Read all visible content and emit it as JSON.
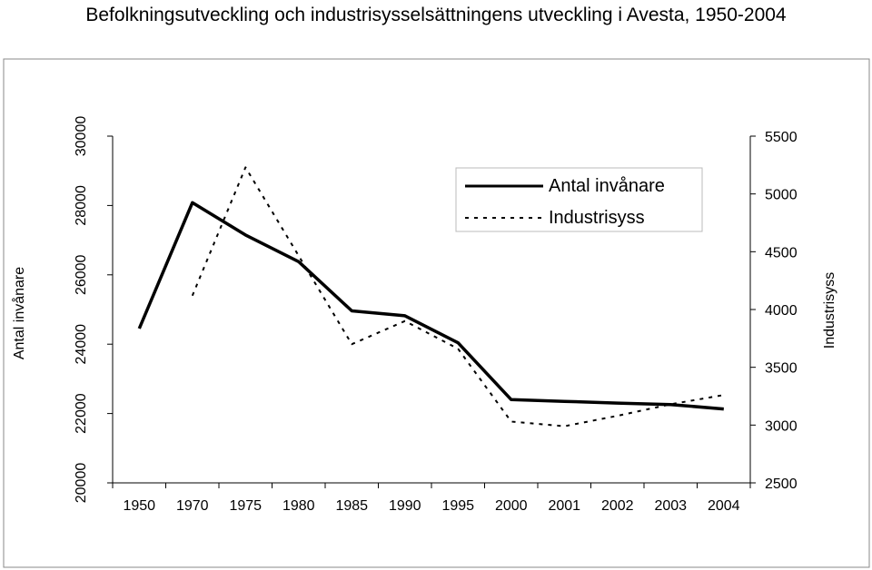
{
  "chart_data": {
    "type": "line",
    "title": "Befolkningsutveckling och industrisysselsättningens utveckling i Avesta, 1950-2004",
    "categories": [
      "1950",
      "1970",
      "1975",
      "1980",
      "1985",
      "1990",
      "1995",
      "2000",
      "2001",
      "2002",
      "2003",
      "2004"
    ],
    "ylabel_left": "Antal invånare",
    "ylabel_right": "Industrisyss",
    "ylim_left": [
      20000,
      30000
    ],
    "ylim_right": [
      2500,
      5500
    ],
    "yticks_left": [
      "20000",
      "22000",
      "24000",
      "26000",
      "28000",
      "30000"
    ],
    "yticks_right": [
      "2500",
      "3000",
      "3500",
      "4000",
      "4500",
      "5000",
      "5500"
    ],
    "grid": false,
    "legend_position": "top-right",
    "series": [
      {
        "name": "Antal invånare",
        "axis": "left",
        "style": "solid",
        "color": "#000000",
        "values": [
          24450,
          28080,
          27150,
          26380,
          24960,
          24820,
          24040,
          22400,
          22350,
          22300,
          22260,
          22130
        ]
      },
      {
        "name": "Industrisyss",
        "axis": "right",
        "style": "dashed",
        "color": "#000000",
        "values": [
          null,
          4120,
          5230,
          null,
          3700,
          3900,
          3660,
          3030,
          2990,
          3080,
          3180,
          3260
        ]
      }
    ]
  }
}
